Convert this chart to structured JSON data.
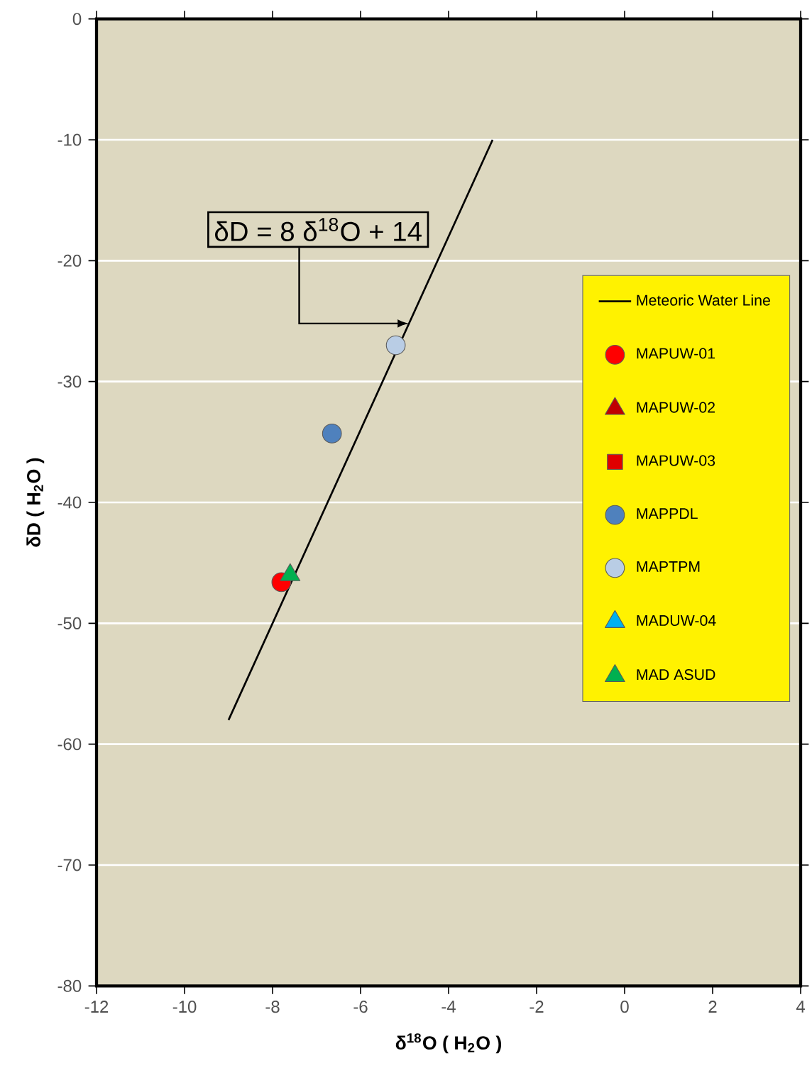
{
  "chart_data": {
    "type": "scatter",
    "xlabel": "δ$^{18}$O ( H$_{2}$O )",
    "ylabel": "δD ( H$_{2}$O )",
    "annotations": [
      {
        "text": "δD = 8 δ$^{18}$O + 14",
        "x": -4.9,
        "y": -25.2
      }
    ],
    "series": [
      {
        "name": "Meteoric Water Line",
        "type": "line",
        "color": "#000000",
        "marker": "none",
        "x": [
          -9,
          -3
        ],
        "values": [
          -58,
          -10
        ]
      },
      {
        "name": "MAPUW-01",
        "color": "#ff0000",
        "marker": "circle",
        "x": [
          -7.8
        ],
        "values": [
          -46.6
        ]
      },
      {
        "name": "MAPUW-02",
        "color": "#c00000",
        "marker": "triangle",
        "x": [
          null
        ],
        "values": [
          null
        ]
      },
      {
        "name": "MAPUW-03",
        "color": "#e00000",
        "marker": "square",
        "x": [
          null
        ],
        "values": [
          null
        ]
      },
      {
        "name": "MAPPDL",
        "color": "#4f81bd",
        "marker": "circle",
        "x": [
          -6.65
        ],
        "values": [
          -34.3
        ]
      },
      {
        "name": "MAPTPM",
        "color": "#b9cde5",
        "marker": "circle",
        "x": [
          -5.2
        ],
        "values": [
          -27
        ]
      },
      {
        "name": "MADUW-04",
        "color": "#00b0f0",
        "marker": "triangle",
        "x": [
          null
        ],
        "values": [
          null
        ]
      },
      {
        "name": "MAD ASUD",
        "color": "#00b050",
        "marker": "triangle",
        "x": [
          -7.6
        ],
        "values": [
          -46
        ]
      }
    ],
    "xlim": [
      -12,
      4
    ],
    "ylim": [
      -80,
      0
    ],
    "xticks": [
      -12,
      -10,
      -8,
      -6,
      -4,
      -2,
      0,
      2,
      4
    ],
    "yticks": [
      -80,
      -70,
      -60,
      -50,
      -40,
      -30,
      -20,
      -10,
      0
    ],
    "grid": "y",
    "legend": "right"
  }
}
